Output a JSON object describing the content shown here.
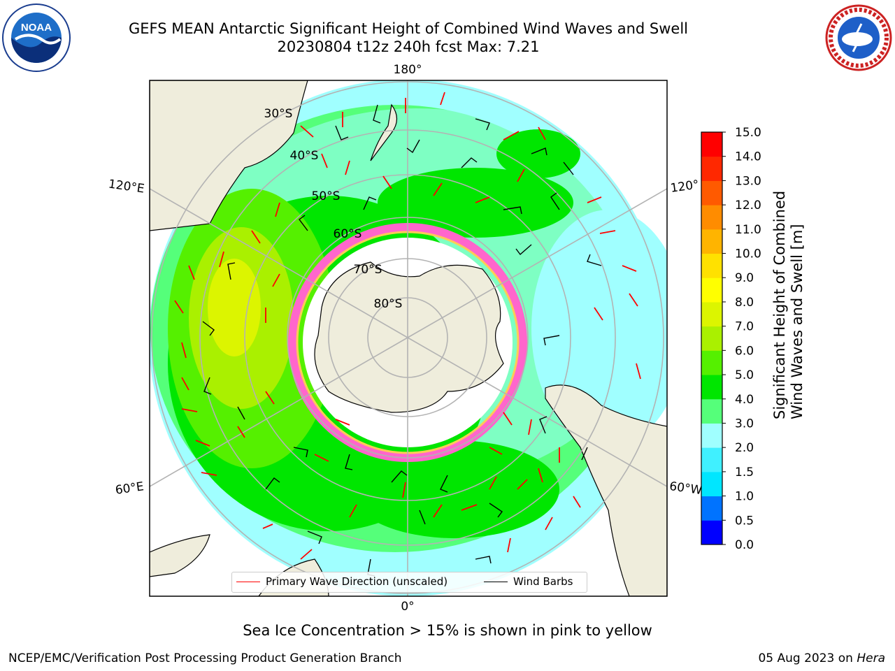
{
  "header": {
    "title_line1": "GEFS MEAN Antarctic Significant Height of Combined Wind Waves and Swell",
    "title_line2": "20230804 t12z 240h fcst   Max: 7.21"
  },
  "map": {
    "projection": "south polar stereographic",
    "longitude_labels": {
      "top": "180°",
      "bottom": "0°",
      "upper_left": "120°E",
      "lower_left": "60°E",
      "upper_right": "120°",
      "lower_right": "60°W"
    },
    "latitude_labels": [
      "30°S",
      "40°S",
      "50°S",
      "60°S",
      "70°S",
      "80°S"
    ],
    "colors": {
      "land": "#efeddc",
      "ice_free_ocean": "#ffffff",
      "grid": "#b3b3b3",
      "arrow": "#ff0000",
      "barb": "#000000"
    }
  },
  "legend": {
    "wave_direction": "Primary Wave Direction (unscaled)",
    "wind_barbs": "Wind Barbs"
  },
  "colorbar": {
    "label_line1": "Significant Height of Combined",
    "label_line2": "Wind Waves and Swell [m]",
    "ticks": [
      "0.0",
      "0.5",
      "1.0",
      "1.5",
      "2.0",
      "3.0",
      "4.0",
      "5.0",
      "6.0",
      "7.0",
      "8.0",
      "9.0",
      "10.0",
      "11.0",
      "12.0",
      "13.0",
      "14.0",
      "15.0"
    ],
    "colors": [
      "#0000ff",
      "#0073ff",
      "#00e6ff",
      "#40f0ff",
      "#a0ffff",
      "#55ff7a",
      "#00e600",
      "#55f000",
      "#aaf000",
      "#dcf500",
      "#ffff00",
      "#ffe100",
      "#ffb400",
      "#ff8c00",
      "#ff5a00",
      "#ff2800",
      "#ff0000"
    ]
  },
  "footer": {
    "note": "Sea Ice Concentration > 15% is shown in pink to yellow",
    "credit": "NCEP/EMC/Verification Post Processing Product Generation Branch",
    "date": "05 Aug 2023 on",
    "machine": "Hera"
  },
  "logos": {
    "left": "noaa-logo",
    "right": "national-weather-service-logo"
  }
}
